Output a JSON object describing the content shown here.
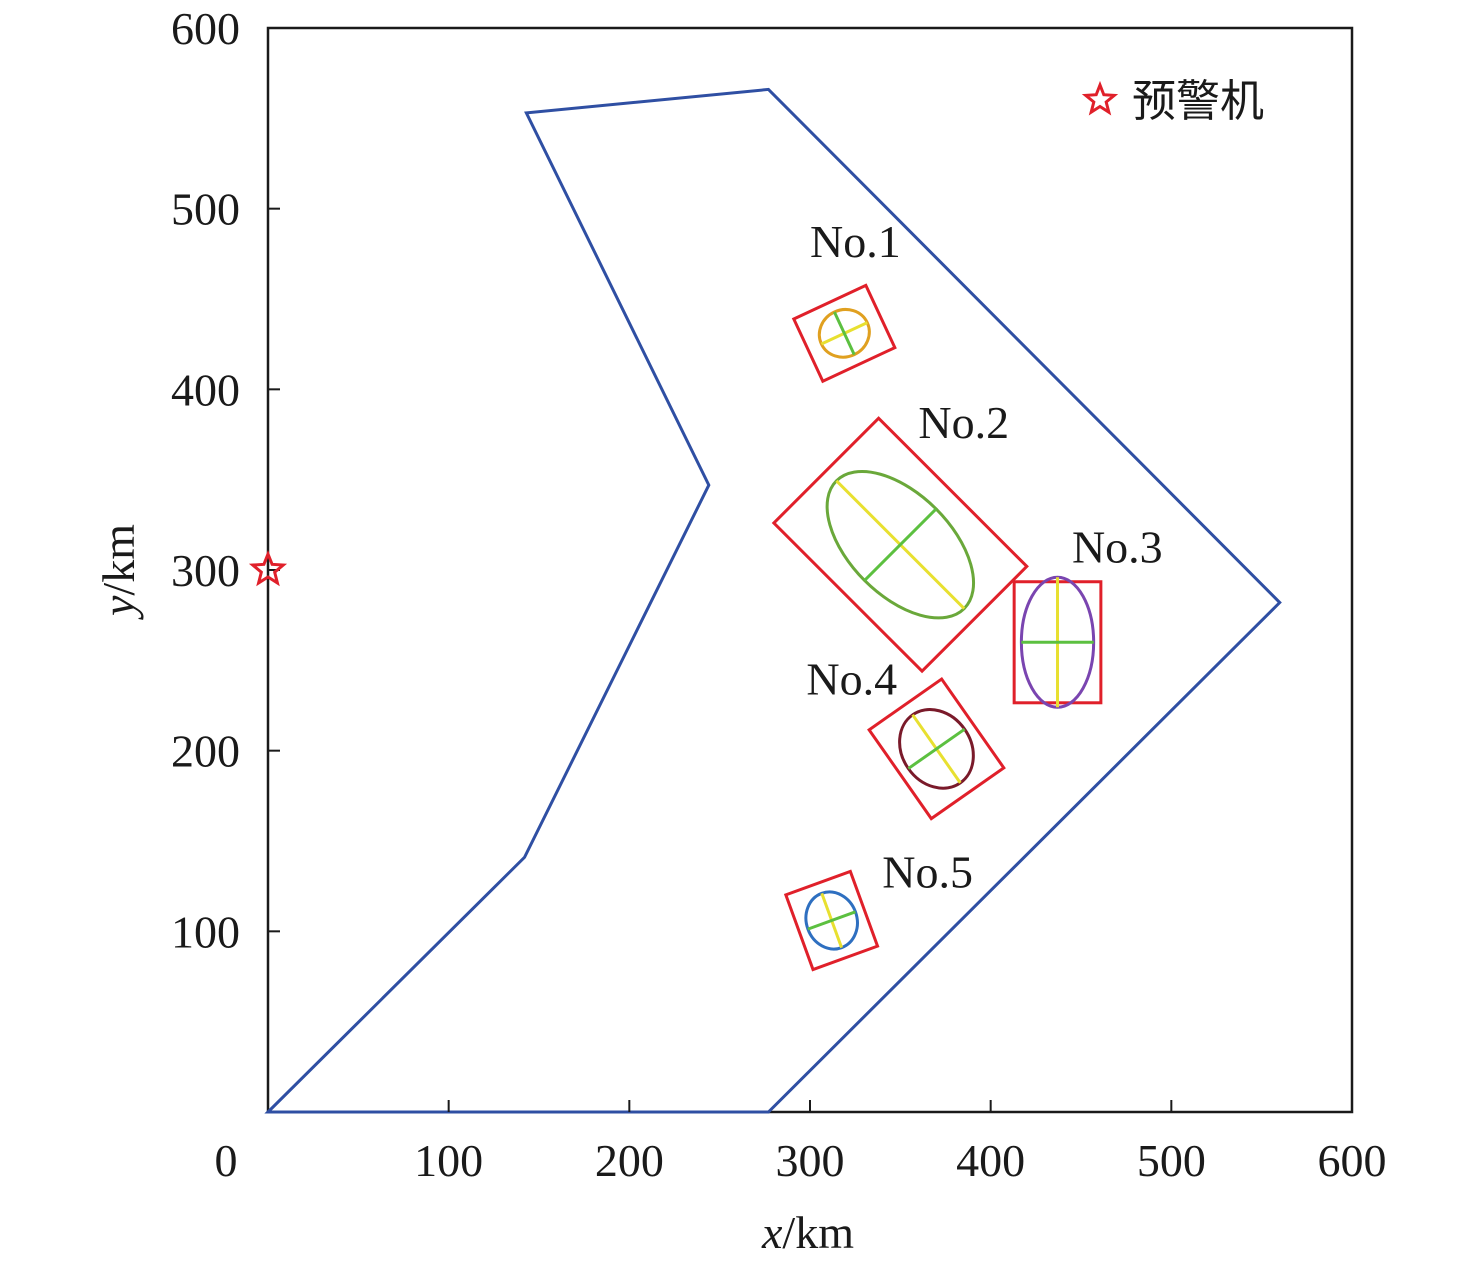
{
  "chart_data": {
    "type": "scatter",
    "xlabel_var": "x",
    "xlabel_unit": "/km",
    "ylabel_var": "y",
    "ylabel_unit": "/km",
    "xlim": [
      0,
      600
    ],
    "ylim": [
      0,
      600
    ],
    "xticks": [
      0,
      100,
      200,
      300,
      400,
      500,
      600
    ],
    "yticks": [
      0,
      100,
      200,
      300,
      400,
      500,
      600
    ],
    "grid": false,
    "legend": {
      "position": "top-right",
      "label": "预警机",
      "marker": "star",
      "color": "#e0202a"
    },
    "awacs": {
      "x": 0,
      "y": 300
    },
    "zone_polygon": [
      [
        0,
        0
      ],
      [
        142,
        141
      ],
      [
        244,
        347
      ],
      [
        143,
        553
      ],
      [
        277,
        566
      ],
      [
        560,
        282
      ],
      [
        277,
        0
      ]
    ],
    "zone_color": "#2f4fa3",
    "targets": [
      {
        "label": "No.1",
        "cx": 319,
        "cy": 431,
        "rx": 14,
        "ry": 13,
        "angle": -25,
        "box_w": 44,
        "box_h": 38,
        "ellipse_color": "#e0a020",
        "axis_major_color": "#e8e030",
        "axis_minor_color": "#5cc040",
        "label_x": 300,
        "label_y": 482
      },
      {
        "label": "No.2",
        "cx": 350,
        "cy": 314,
        "rx": 50,
        "ry": 28,
        "angle": 45,
        "box_w": 116,
        "box_h": 82,
        "ellipse_color": "#6aa83a",
        "axis_major_color": "#e8e030",
        "axis_minor_color": "#5cc040",
        "label_x": 360,
        "label_y": 382
      },
      {
        "label": "No.3",
        "cx": 437,
        "cy": 260,
        "rx": 20,
        "ry": 36,
        "angle": 0,
        "box_w": 48,
        "box_h": 67,
        "ellipse_color": "#7a45b0",
        "axis_major_color": "#e8e030",
        "axis_minor_color": "#5cc040",
        "label_x": 445,
        "label_y": 313
      },
      {
        "label": "No.4",
        "cx": 370,
        "cy": 201,
        "rx": 19,
        "ry": 23,
        "angle": -35,
        "box_w": 49,
        "box_h": 60,
        "ellipse_color": "#7a1a2a",
        "axis_major_color": "#e8e030",
        "axis_minor_color": "#5cc040",
        "label_x": 298,
        "label_y": 240
      },
      {
        "label": "No.5",
        "cx": 312,
        "cy": 106,
        "rx": 14,
        "ry": 16,
        "angle": -20,
        "box_w": 38,
        "box_h": 44,
        "ellipse_color": "#2e6fc0",
        "axis_major_color": "#e8e030",
        "axis_minor_color": "#5cc040",
        "label_x": 340,
        "label_y": 133
      }
    ],
    "box_color": "#e0202a"
  }
}
